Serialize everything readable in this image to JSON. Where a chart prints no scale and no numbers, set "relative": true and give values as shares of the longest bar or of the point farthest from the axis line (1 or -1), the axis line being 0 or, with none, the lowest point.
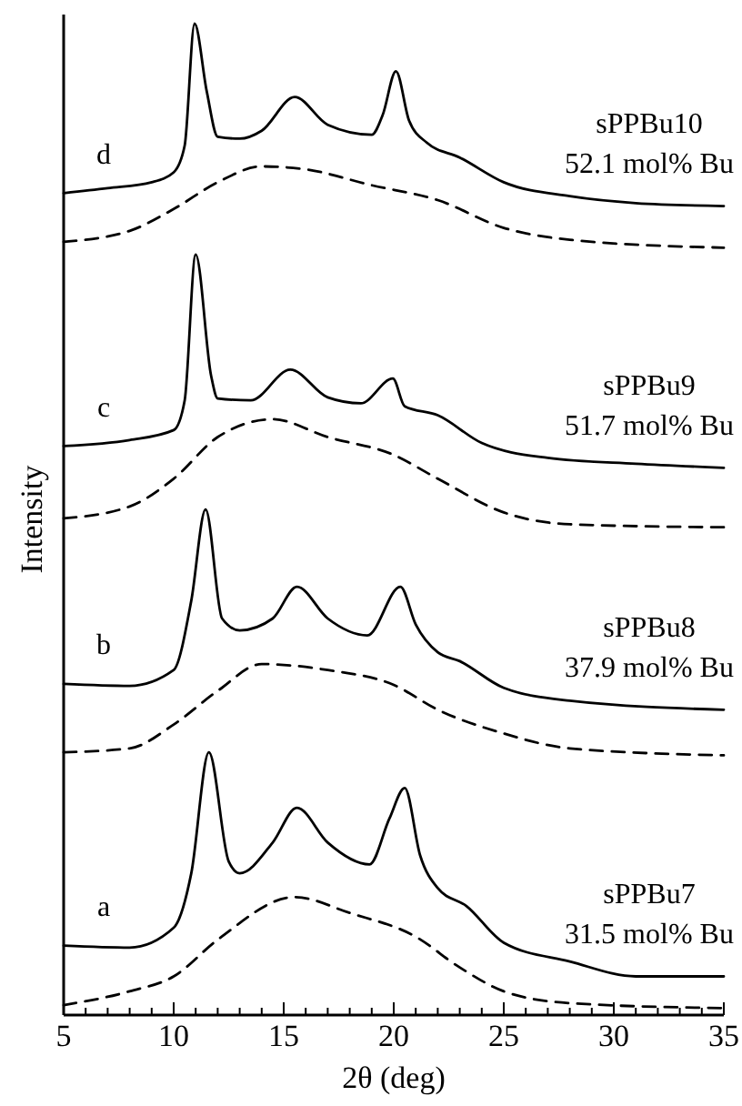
{
  "chart_data": {
    "type": "line",
    "relative": true,
    "xlabel": "2θ (deg)",
    "ylabel": "Intensity",
    "xlim": [
      5,
      35
    ],
    "xticks": [
      5,
      {
        "value": 6,
        "label": null
      },
      {
        "value": 7,
        "label": null
      },
      {
        "value": 8,
        "label": null
      },
      {
        "value": 9,
        "label": null
      },
      10,
      {
        "value": 11,
        "label": null
      },
      {
        "value": 12,
        "label": null
      },
      {
        "value": 13,
        "label": null
      },
      {
        "value": 14,
        "label": null
      },
      15,
      {
        "value": 16,
        "label": null
      },
      {
        "value": 17,
        "label": null
      },
      {
        "value": 18,
        "label": null
      },
      {
        "value": 19,
        "label": null
      },
      20,
      {
        "value": 21,
        "label": null
      },
      {
        "value": 22,
        "label": null
      },
      {
        "value": 23,
        "label": null
      },
      {
        "value": 24,
        "label": null
      },
      25,
      {
        "value": 26,
        "label": null
      },
      {
        "value": 27,
        "label": null
      },
      {
        "value": 28,
        "label": null
      },
      {
        "value": 29,
        "label": null
      },
      30,
      {
        "value": 31,
        "label": null
      },
      {
        "value": 32,
        "label": null
      },
      {
        "value": 33,
        "label": null
      },
      {
        "value": 34,
        "label": null
      },
      35
    ],
    "grid": false,
    "marker": "none",
    "series": [
      {
        "color": "#000000",
        "line_style": "solid",
        "x": [
          5,
          7,
          9,
          10,
          10.5,
          10.95,
          11.5,
          12,
          13,
          14,
          15.5,
          17,
          19,
          19.5,
          20.1,
          20.7,
          21.5,
          23,
          25,
          28,
          31,
          35
        ],
        "values": [
          0.829,
          0.834,
          0.84,
          0.85,
          0.877,
          1.0,
          0.932,
          0.886,
          0.884,
          0.892,
          0.926,
          0.898,
          0.888,
          0.908,
          0.952,
          0.902,
          0.88,
          0.865,
          0.84,
          0.826,
          0.819,
          0.816
        ]
      },
      {
        "color": "#000000",
        "line_style": "dashed",
        "x": [
          5,
          8,
          10,
          12,
          14,
          16,
          19,
          22,
          25,
          28,
          35
        ],
        "values": [
          0.78,
          0.791,
          0.813,
          0.84,
          0.856,
          0.853,
          0.837,
          0.822,
          0.794,
          0.782,
          0.774
        ]
      },
      {
        "color": "#000000",
        "line_style": "solid",
        "x": [
          5,
          8,
          10,
          10.5,
          11,
          11.7,
          12,
          13.5,
          15.3,
          17,
          18.5,
          19.96,
          20.5,
          22,
          24,
          27,
          31,
          35
        ],
        "values": [
          0.574,
          0.58,
          0.59,
          0.62,
          0.767,
          0.645,
          0.622,
          0.62,
          0.651,
          0.623,
          0.617,
          0.642,
          0.614,
          0.605,
          0.577,
          0.562,
          0.556,
          0.552
        ]
      },
      {
        "color": "#000000",
        "line_style": "dashed",
        "x": [
          5,
          8,
          10,
          12,
          14.5,
          17,
          20,
          22,
          25,
          28,
          35
        ],
        "values": [
          0.501,
          0.513,
          0.541,
          0.583,
          0.601,
          0.583,
          0.565,
          0.541,
          0.507,
          0.495,
          0.492
        ]
      },
      {
        "color": "#000000",
        "line_style": "solid",
        "x": [
          5,
          8,
          10,
          10.8,
          11.45,
          12.2,
          13,
          14.5,
          15.6,
          17,
          18.8,
          20.3,
          21,
          22,
          23,
          25,
          28,
          35
        ],
        "values": [
          0.334,
          0.332,
          0.348,
          0.418,
          0.51,
          0.4,
          0.388,
          0.4,
          0.432,
          0.4,
          0.383,
          0.432,
          0.394,
          0.366,
          0.357,
          0.33,
          0.317,
          0.308
        ]
      },
      {
        "color": "#000000",
        "line_style": "dashed",
        "x": [
          5,
          8,
          10,
          12,
          14,
          17,
          20,
          22,
          25,
          28,
          35
        ],
        "values": [
          0.265,
          0.269,
          0.293,
          0.327,
          0.354,
          0.348,
          0.333,
          0.308,
          0.284,
          0.269,
          0.262
        ]
      },
      {
        "color": "#000000",
        "line_style": "solid",
        "x": [
          5,
          8,
          10,
          10.8,
          11.6,
          12.5,
          13,
          14.5,
          15.6,
          17,
          18.9,
          19.8,
          20.5,
          21.2,
          22,
          23.3,
          25,
          28,
          31,
          35
        ],
        "values": [
          0.07,
          0.068,
          0.088,
          0.143,
          0.265,
          0.155,
          0.143,
          0.174,
          0.209,
          0.174,
          0.152,
          0.198,
          0.229,
          0.161,
          0.128,
          0.11,
          0.073,
          0.054,
          0.039,
          0.039
        ]
      },
      {
        "color": "#000000",
        "line_style": "dashed",
        "x": [
          5,
          8,
          10,
          12,
          15.5,
          18,
          21,
          23,
          25,
          28,
          35
        ],
        "values": [
          0.01,
          0.024,
          0.039,
          0.076,
          0.119,
          0.103,
          0.079,
          0.048,
          0.024,
          0.012,
          0.007
        ]
      }
    ],
    "annotations": [
      "d",
      "sPPBu10",
      "52.1 mol% Bu",
      "c",
      "sPPBu9",
      "51.7 mol% Bu",
      "b",
      "sPPBu8",
      "37.9 mol% Bu",
      "a",
      "sPPBu7",
      "31.5 mol% Bu"
    ]
  }
}
